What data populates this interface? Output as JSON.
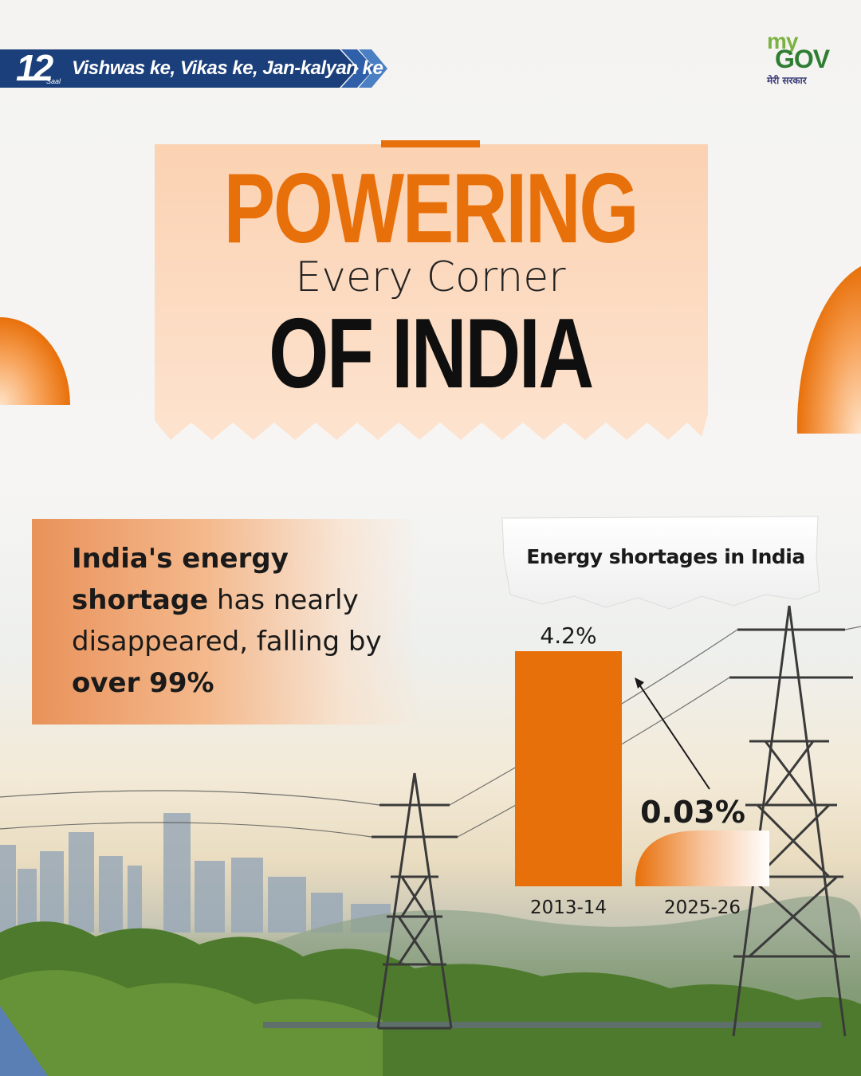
{
  "banner": {
    "years": "12",
    "years_suffix": "Saal",
    "tagline": "Vishwas ke, Vikas ke, Jan-kalyan ke"
  },
  "logo": {
    "my": "my",
    "gov": "GOV",
    "hindi": "मेरी सरकार"
  },
  "title": {
    "line1": "POWERING",
    "line2": "Every Corner",
    "line3": "OF INDIA"
  },
  "fact": {
    "part1_bold": "India's energy shortage",
    "part2": " has nearly disappeared, falling by ",
    "part3_bold": "over 99%"
  },
  "colors": {
    "accent": "#e8700a",
    "banner_blue": "#1b3f7a",
    "text_dark": "#1a1a1a"
  },
  "chart_data": {
    "type": "bar",
    "title": "Energy shortages in India",
    "categories": [
      "2013-14",
      "2025-26"
    ],
    "values": [
      4.2,
      0.03
    ],
    "value_labels": [
      "4.2%",
      "0.03%"
    ],
    "unit": "%",
    "xlabel": "",
    "ylabel": "",
    "grid": false,
    "legend": "none"
  }
}
